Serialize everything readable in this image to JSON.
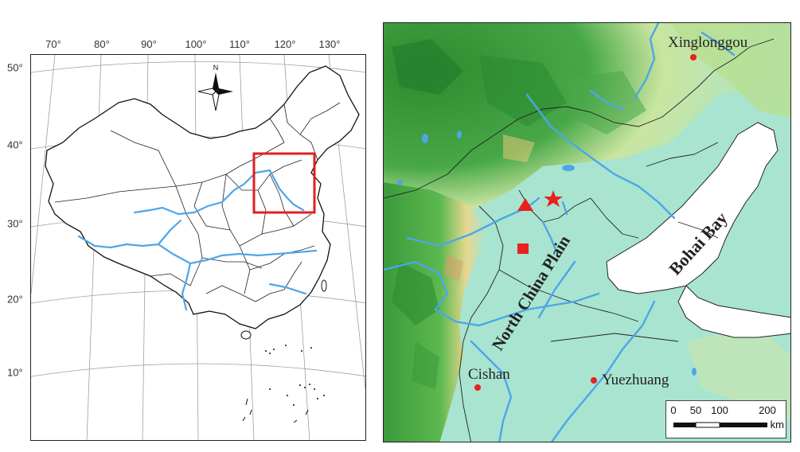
{
  "left_map": {
    "longitudes": [
      "70°",
      "80°",
      "90°",
      "100°",
      "110°",
      "120°",
      "130°"
    ],
    "latitudes": [
      "50°",
      "40°",
      "30°",
      "20°",
      "10°"
    ],
    "north_label": "N"
  },
  "right_map": {
    "places": {
      "xinglonggou": "Xinglonggou",
      "cishan": "Cishan",
      "yuezhuang": "Yuezhuang"
    },
    "region": "North China Plain",
    "bay": "Bohai Bay",
    "scale": {
      "ticks": [
        "0",
        "50",
        "100",
        "200"
      ],
      "unit": "km"
    },
    "colors": {
      "marker": "#e8201e",
      "river": "#4da6e8",
      "plain": "#a8e4cf",
      "mountain_high": "#2e8b2e",
      "study_box": "#e02020"
    }
  }
}
